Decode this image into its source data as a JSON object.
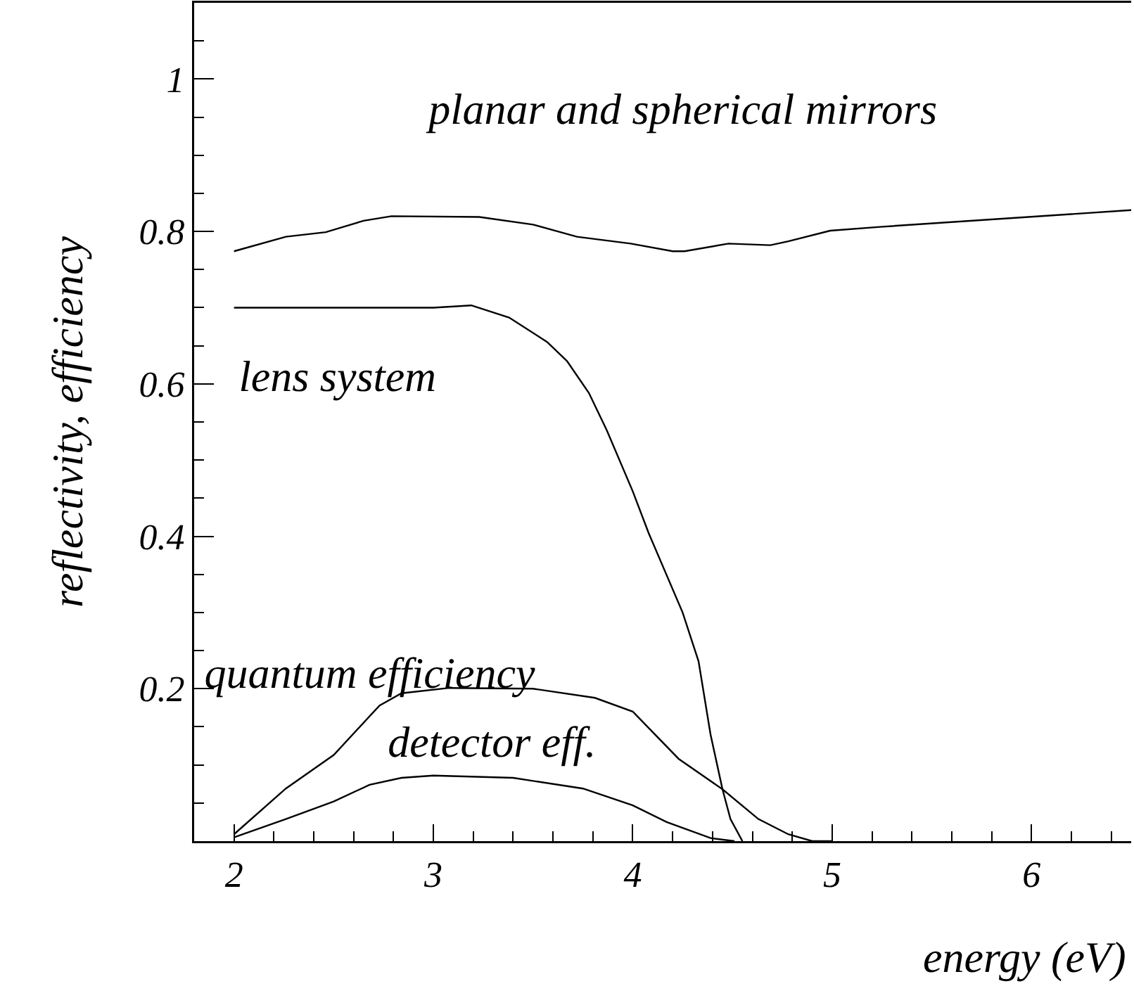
{
  "chart_data": {
    "type": "line",
    "xlabel": "energy (eV)",
    "ylabel": "reflectivity, efficiency",
    "xlim": [
      1.8,
      6.5
    ],
    "ylim": [
      0,
      1.1
    ],
    "xticks": [
      2,
      {
        "value": 2.2,
        "label": null
      },
      {
        "value": 2.4,
        "label": null
      },
      {
        "value": 2.6,
        "label": null
      },
      {
        "value": 2.8,
        "label": null
      },
      3,
      {
        "value": 3.2,
        "label": null
      },
      {
        "value": 3.4,
        "label": null
      },
      {
        "value": 3.6,
        "label": null
      },
      {
        "value": 3.8,
        "label": null
      },
      4,
      {
        "value": 4.2,
        "label": null
      },
      {
        "value": 4.4,
        "label": null
      },
      {
        "value": 4.6,
        "label": null
      },
      {
        "value": 4.8,
        "label": null
      },
      5,
      {
        "value": 5.2,
        "label": null
      },
      {
        "value": 5.4,
        "label": null
      },
      {
        "value": 5.6,
        "label": null
      },
      {
        "value": 5.8,
        "label": null
      },
      6,
      {
        "value": 6.2,
        "label": null
      },
      {
        "value": 6.4,
        "label": null
      }
    ],
    "yticks": [
      {
        "value": 0.05,
        "label": null
      },
      {
        "value": 0.1,
        "label": null
      },
      {
        "value": 0.15,
        "label": null
      },
      0.2,
      {
        "value": 0.25,
        "label": null
      },
      {
        "value": 0.3,
        "label": null
      },
      {
        "value": 0.35,
        "label": null
      },
      0.4,
      {
        "value": 0.45,
        "label": null
      },
      {
        "value": 0.5,
        "label": null
      },
      {
        "value": 0.55,
        "label": null
      },
      0.6,
      {
        "value": 0.65,
        "label": null
      },
      {
        "value": 0.7,
        "label": null
      },
      {
        "value": 0.75,
        "label": null
      },
      0.8,
      {
        "value": 0.85,
        "label": null
      },
      {
        "value": 0.9,
        "label": null
      },
      {
        "value": 0.95,
        "label": null
      },
      1,
      {
        "value": 1.05,
        "label": null
      }
    ],
    "grid": false,
    "legend": false,
    "marker": "none",
    "line_style": "solid",
    "series": [
      {
        "name": "planar and spherical mirrors",
        "color": "#000000",
        "x": [
          2,
          2.26,
          2.46,
          2.65,
          2.79,
          3.23,
          3.5,
          3.72,
          3.99,
          4.2,
          4.26,
          4.48,
          4.69,
          4.78,
          4.99,
          5.24,
          6.5
        ],
        "values": [
          0.774,
          0.793,
          0.799,
          0.814,
          0.82,
          0.819,
          0.809,
          0.793,
          0.784,
          0.774,
          0.774,
          0.784,
          0.782,
          0.787,
          0.801,
          0.806,
          0.828
        ]
      },
      {
        "name": "lens system",
        "color": "#000000",
        "x": [
          2,
          3,
          3.19,
          3.38,
          3.57,
          3.67,
          3.78,
          3.87,
          4,
          4.08,
          4.25,
          4.33,
          4.39,
          4.45,
          4.49,
          4.55
        ],
        "values": [
          0.7,
          0.7,
          0.703,
          0.687,
          0.655,
          0.63,
          0.588,
          0.539,
          0.459,
          0.404,
          0.3,
          0.236,
          0.14,
          0.068,
          0.029,
          0
        ]
      },
      {
        "name": "quantum efficiency",
        "color": "#000000",
        "x": [
          2,
          2.26,
          2.5,
          2.73,
          2.84,
          3.08,
          3.5,
          3.81,
          4,
          4.23,
          4.45,
          4.63,
          4.78,
          4.9,
          5.0
        ],
        "values": [
          0.009,
          0.069,
          0.113,
          0.178,
          0.194,
          0.201,
          0.2,
          0.188,
          0.17,
          0.108,
          0.068,
          0.029,
          0.009,
          0,
          0
        ]
      },
      {
        "name": "detector eff.",
        "color": "#000000",
        "x": [
          2,
          2.26,
          2.5,
          2.68,
          2.84,
          3,
          3.4,
          3.75,
          4,
          4.17,
          4.39,
          4.51
        ],
        "values": [
          0.005,
          0.029,
          0.052,
          0.074,
          0.083,
          0.086,
          0.083,
          0.069,
          0.047,
          0.025,
          0.004,
          0
        ]
      }
    ]
  }
}
